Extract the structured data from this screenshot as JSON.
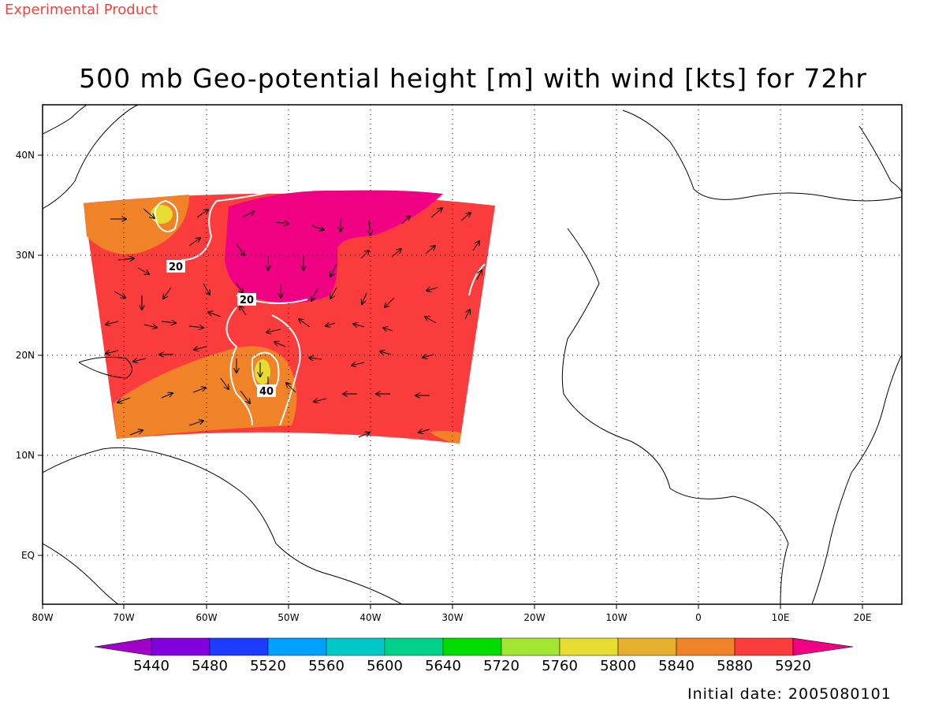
{
  "header": {
    "product_label": "Experimental Product",
    "title": "500 mb Geo-potential height [m] with wind [kts] for 72hr",
    "initial_date": "Initial date: 2005080101"
  },
  "axes": {
    "longitude_labels": [
      "80W",
      "70W",
      "60W",
      "50W",
      "40W",
      "30W",
      "20W",
      "10W",
      "0",
      "10E",
      "20E"
    ],
    "latitude_labels": [
      "40N",
      "30N",
      "20N",
      "10N",
      "EQ"
    ],
    "lon_range": [
      -80,
      25
    ],
    "lat_range": [
      -5,
      45
    ],
    "grid": "dotted"
  },
  "colorbar": {
    "levels": [
      "5440",
      "5480",
      "5520",
      "5560",
      "5600",
      "5640",
      "5720",
      "5760",
      "5800",
      "5840",
      "5880",
      "5920"
    ],
    "colors": [
      "#a000c8",
      "#8200dc",
      "#1e3cff",
      "#00a0ff",
      "#00c8c8",
      "#00d28c",
      "#00dc00",
      "#a0e632",
      "#e6dc32",
      "#e6af2d",
      "#f08228",
      "#fa3c3c",
      "#f00082"
    ]
  },
  "field": {
    "regions": [
      "5880",
      "5920",
      "5840"
    ],
    "colors": {
      "c5840": "#f08228",
      "c5880": "#fa3c3c",
      "c5920": "#f00082",
      "c5800": "#e6dc32"
    }
  },
  "wind_contours": [
    "20",
    "20",
    "40"
  ]
}
